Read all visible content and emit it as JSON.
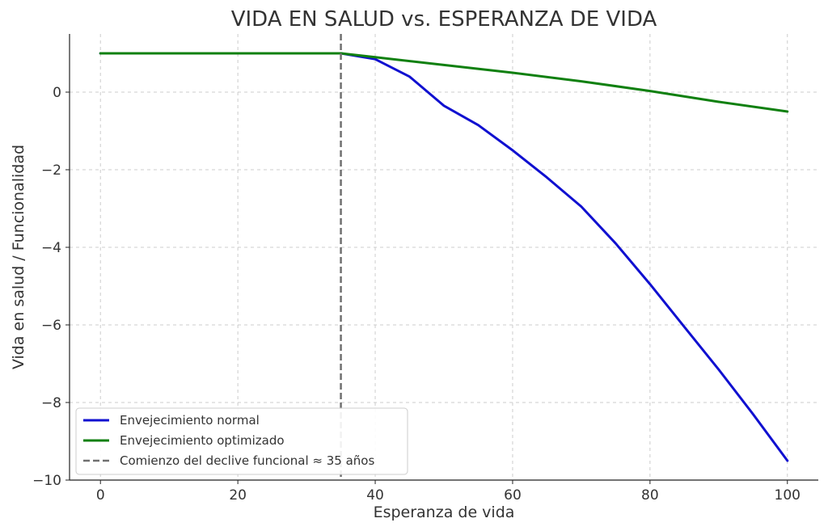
{
  "chart_data": {
    "type": "line",
    "title": "VIDA EN SALUD vs. ESPERANZA DE VIDA",
    "xlabel": "Esperanza de vida",
    "ylabel": "Vida en salud / Funcionalidad",
    "xlim": [
      -4.5,
      104.5
    ],
    "ylim": [
      -10,
      1.5
    ],
    "x_ticks": [
      0,
      20,
      40,
      60,
      80,
      100
    ],
    "y_ticks": [
      -10,
      -8,
      -6,
      -4,
      -2,
      0
    ],
    "x_tick_labels": [
      "0",
      "20",
      "40",
      "60",
      "80",
      "100"
    ],
    "y_tick_labels": [
      "−10",
      "−8",
      "−6",
      "−4",
      "−2",
      "0"
    ],
    "grid": true,
    "legend_position": "lower-left",
    "series": [
      {
        "name": "Envejecimiento normal",
        "color": "#1010d0",
        "style": "solid",
        "points": [
          [
            0,
            1
          ],
          [
            10,
            1
          ],
          [
            20,
            1
          ],
          [
            30,
            1
          ],
          [
            35,
            1
          ],
          [
            40,
            0.85
          ],
          [
            45,
            0.4
          ],
          [
            50,
            -0.35
          ],
          [
            55,
            -0.85
          ],
          [
            60,
            -1.5
          ],
          [
            65,
            -2.2
          ],
          [
            70,
            -2.95
          ],
          [
            75,
            -3.9
          ],
          [
            80,
            -4.95
          ],
          [
            85,
            -6.05
          ],
          [
            90,
            -7.15
          ],
          [
            95,
            -8.3
          ],
          [
            100,
            -9.5
          ]
        ]
      },
      {
        "name": "Envejecimiento optimizado",
        "color": "#108010",
        "style": "solid",
        "points": [
          [
            0,
            1
          ],
          [
            10,
            1
          ],
          [
            20,
            1
          ],
          [
            30,
            1
          ],
          [
            35,
            1
          ],
          [
            40,
            0.9
          ],
          [
            50,
            0.7
          ],
          [
            60,
            0.5
          ],
          [
            70,
            0.28
          ],
          [
            80,
            0.03
          ],
          [
            90,
            -0.25
          ],
          [
            100,
            -0.5
          ]
        ]
      }
    ],
    "reference_lines": [
      {
        "name": "Comienzo del declive funcional ≈ 35 años",
        "orientation": "vertical",
        "x": 35,
        "color": "#707070",
        "style": "dashed"
      }
    ]
  }
}
